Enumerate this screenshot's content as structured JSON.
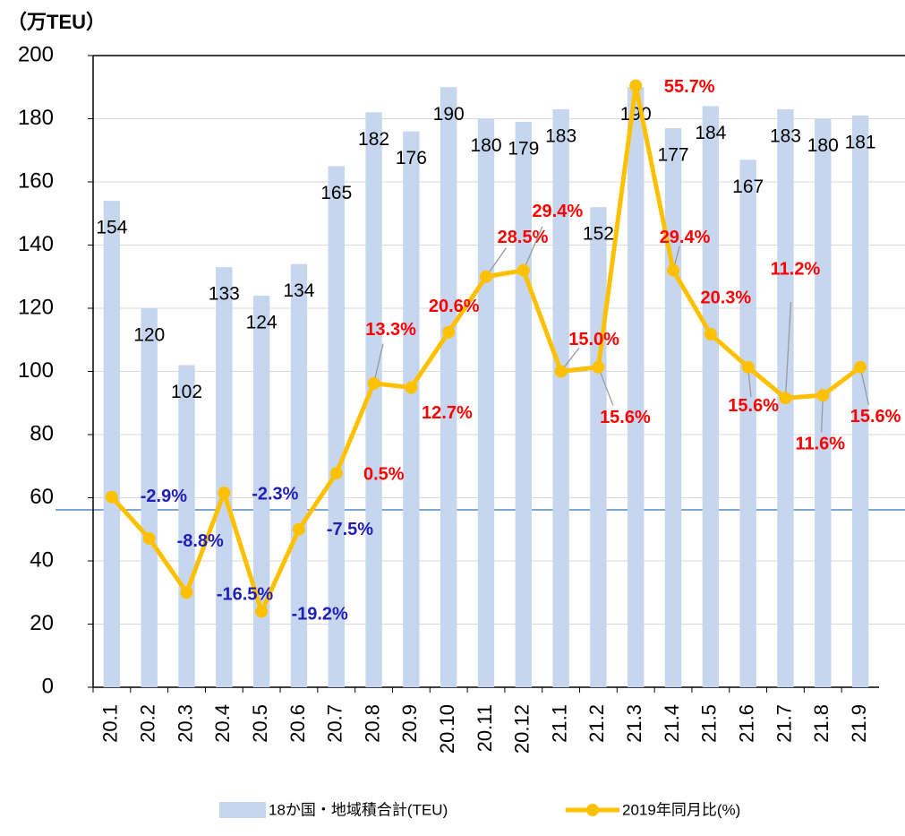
{
  "chart_data": {
    "type": "bar_line",
    "y_axis_label": "（万TEU）",
    "categories": [
      "20.1",
      "20.2",
      "20.3",
      "20.4",
      "20.5",
      "20.6",
      "20.7",
      "20.8",
      "20.9",
      "20.10",
      "20.11",
      "20.12",
      "21.1",
      "21.2",
      "21.3",
      "21.4",
      "21.5",
      "21.6",
      "21.7",
      "21.8",
      "21.9"
    ],
    "series": [
      {
        "name": "18か国・地域積合計(TEU)",
        "type": "bar",
        "color": "#c6d6ee",
        "values": [
          154,
          120,
          102,
          133,
          124,
          134,
          165,
          182,
          176,
          190,
          180,
          179,
          183,
          152,
          190,
          177,
          184,
          167,
          183,
          180,
          181
        ]
      },
      {
        "name": "2019年同月比(%)",
        "type": "line",
        "color": "#ffc000",
        "axis": "y2",
        "values": [
          -2.9,
          -8.8,
          -16.5,
          -2.3,
          -19.2,
          -7.5,
          0.5,
          13.3,
          12.7,
          20.6,
          28.5,
          29.4,
          15.0,
          15.6,
          55.7,
          29.4,
          20.3,
          15.6,
          11.2,
          11.6,
          15.6
        ],
        "value_labels": [
          "-2.9%",
          "-8.8%",
          "-16.5%",
          "-2.3%",
          "-19.2%",
          "-7.5%",
          "0.5%",
          "13.3%",
          "12.7%",
          "20.6%",
          "28.5%",
          "29.4%",
          "15.0%",
          "15.6%",
          "55.7%",
          "29.4%",
          "20.3%",
          "15.6%",
          "11.2%",
          "11.6%",
          "15.6%"
        ],
        "positive_label_color": "#ff0000",
        "negative_label_color": "#1f1fb4"
      }
    ],
    "ylim": [
      0,
      200
    ],
    "yticks": [
      0,
      20,
      40,
      60,
      80,
      100,
      120,
      140,
      160,
      180,
      200
    ],
    "y2lim": [
      -30,
      60
    ],
    "grid": true
  }
}
